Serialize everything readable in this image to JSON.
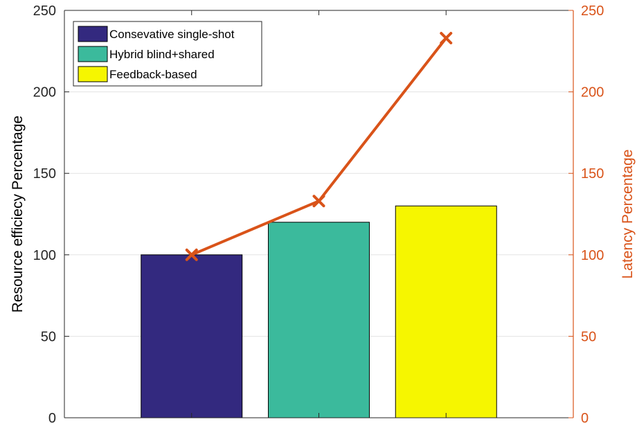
{
  "chart_data": {
    "type": "bar",
    "categories": [
      "",
      "",
      ""
    ],
    "series": [
      {
        "name": "Resource efficiecy Percentage",
        "axis": "left",
        "type": "bar",
        "values": [
          100,
          120,
          130
        ],
        "colors": [
          "#33297f",
          "#3bba9c",
          "#f6f600"
        ]
      },
      {
        "name": "Latency Percentage",
        "axis": "right",
        "type": "line",
        "marker": "x",
        "values": [
          100,
          133,
          233
        ],
        "color": "#d95319"
      }
    ],
    "ylabel": "Resource efficiecy Percentage",
    "y2label": "Latency Percentage",
    "ylim": [
      0,
      250
    ],
    "y2lim": [
      0,
      250
    ],
    "yticks": [
      "0",
      "50",
      "100",
      "150",
      "200",
      "250"
    ],
    "y2ticks": [
      "0",
      "50",
      "100",
      "150",
      "200",
      "250"
    ],
    "grid": true,
    "legend": {
      "placement": "top-left",
      "entries": [
        {
          "label": "Consevative single-shot",
          "color": "#33297f"
        },
        {
          "label": "Hybrid blind+shared",
          "color": "#3bba9c"
        },
        {
          "label": "Feedback-based",
          "color": "#f6f600"
        }
      ]
    },
    "left_axis_color": "#262626",
    "right_axis_color": "#d95319"
  }
}
